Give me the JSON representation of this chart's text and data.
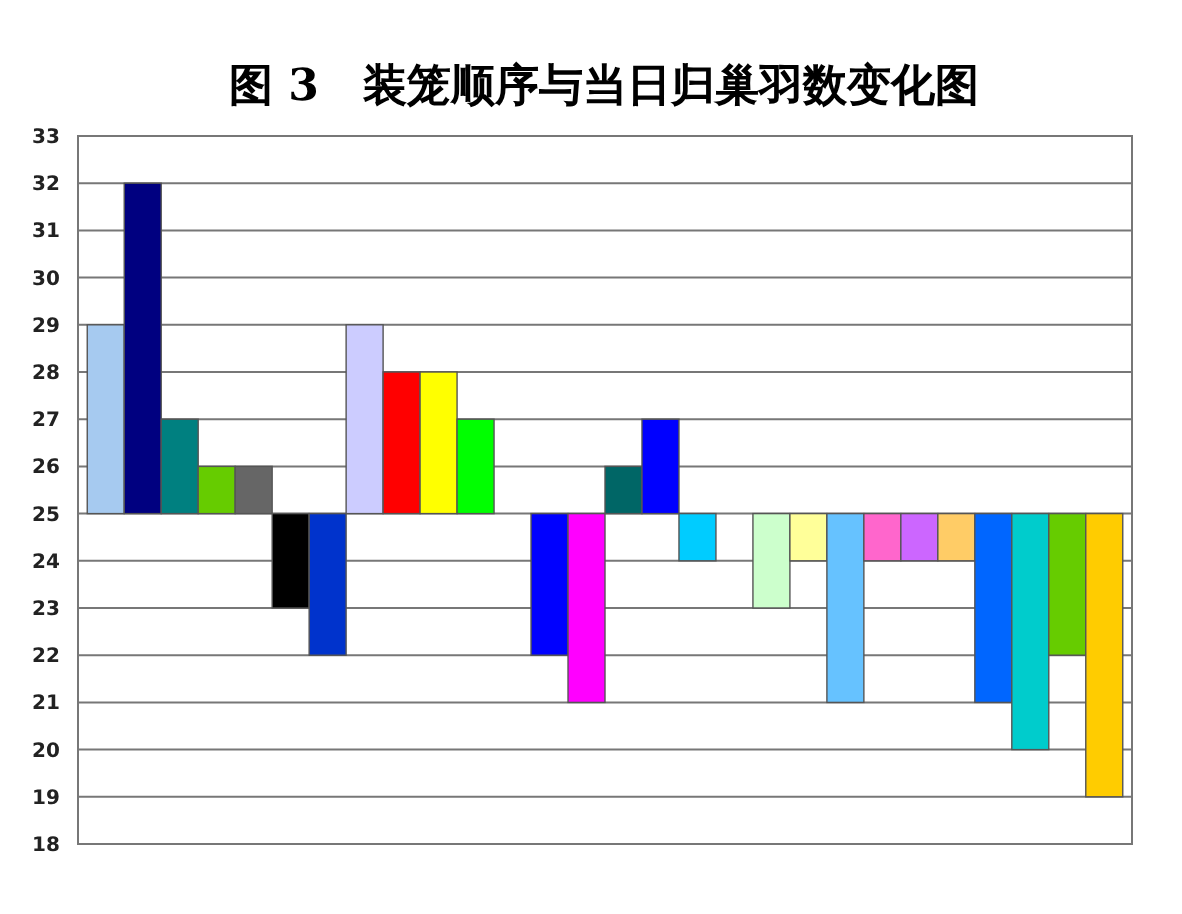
{
  "chart_data": {
    "type": "bar",
    "title": "图 3　装笼顺序与当日归巢羽数变化图",
    "categories": [
      null,
      null,
      null,
      null,
      null,
      null,
      null,
      null,
      null,
      null,
      null,
      null,
      null,
      null,
      null,
      null,
      null,
      null,
      null,
      null,
      null,
      null,
      null,
      null,
      null,
      null,
      null,
      null
    ],
    "values": [
      4,
      7,
      2,
      1,
      1,
      -2,
      -3,
      4,
      3,
      3,
      2,
      null,
      -3,
      -4,
      1,
      2,
      -1,
      null,
      -2,
      -1,
      -4,
      -1,
      -1,
      -1,
      -4,
      -5,
      -3,
      -6
    ],
    "base": [
      25,
      25,
      25,
      25,
      25,
      25,
      25,
      25,
      25,
      25,
      25,
      null,
      25,
      25,
      25,
      25,
      25,
      null,
      25,
      25,
      25,
      25,
      25,
      25,
      25,
      25,
      25,
      25
    ],
    "colors": [
      "#a6caf0",
      "#000080",
      "#008080",
      "#66cc00",
      "#666666",
      "#000000",
      "#0033cc",
      "#ccccff",
      "#ff0000",
      "#ffff00",
      "#00ff00",
      null,
      "#0000ff",
      "#ff00ff",
      "#006666",
      "#0000ff",
      "#00ccff",
      null,
      "#ccffcc",
      "#ffff99",
      "#66c2ff",
      "#ff66cc",
      "#cc66ff",
      "#ffcc66",
      "#0066ff",
      "#00cccc",
      "#66cc00",
      "#ffcc00"
    ],
    "ylim": [
      18,
      33
    ],
    "yticks": [
      18,
      19,
      20,
      21,
      22,
      23,
      24,
      25,
      26,
      27,
      28,
      29,
      30,
      31,
      32,
      33
    ],
    "grid": "y",
    "tick_labels": "y"
  }
}
